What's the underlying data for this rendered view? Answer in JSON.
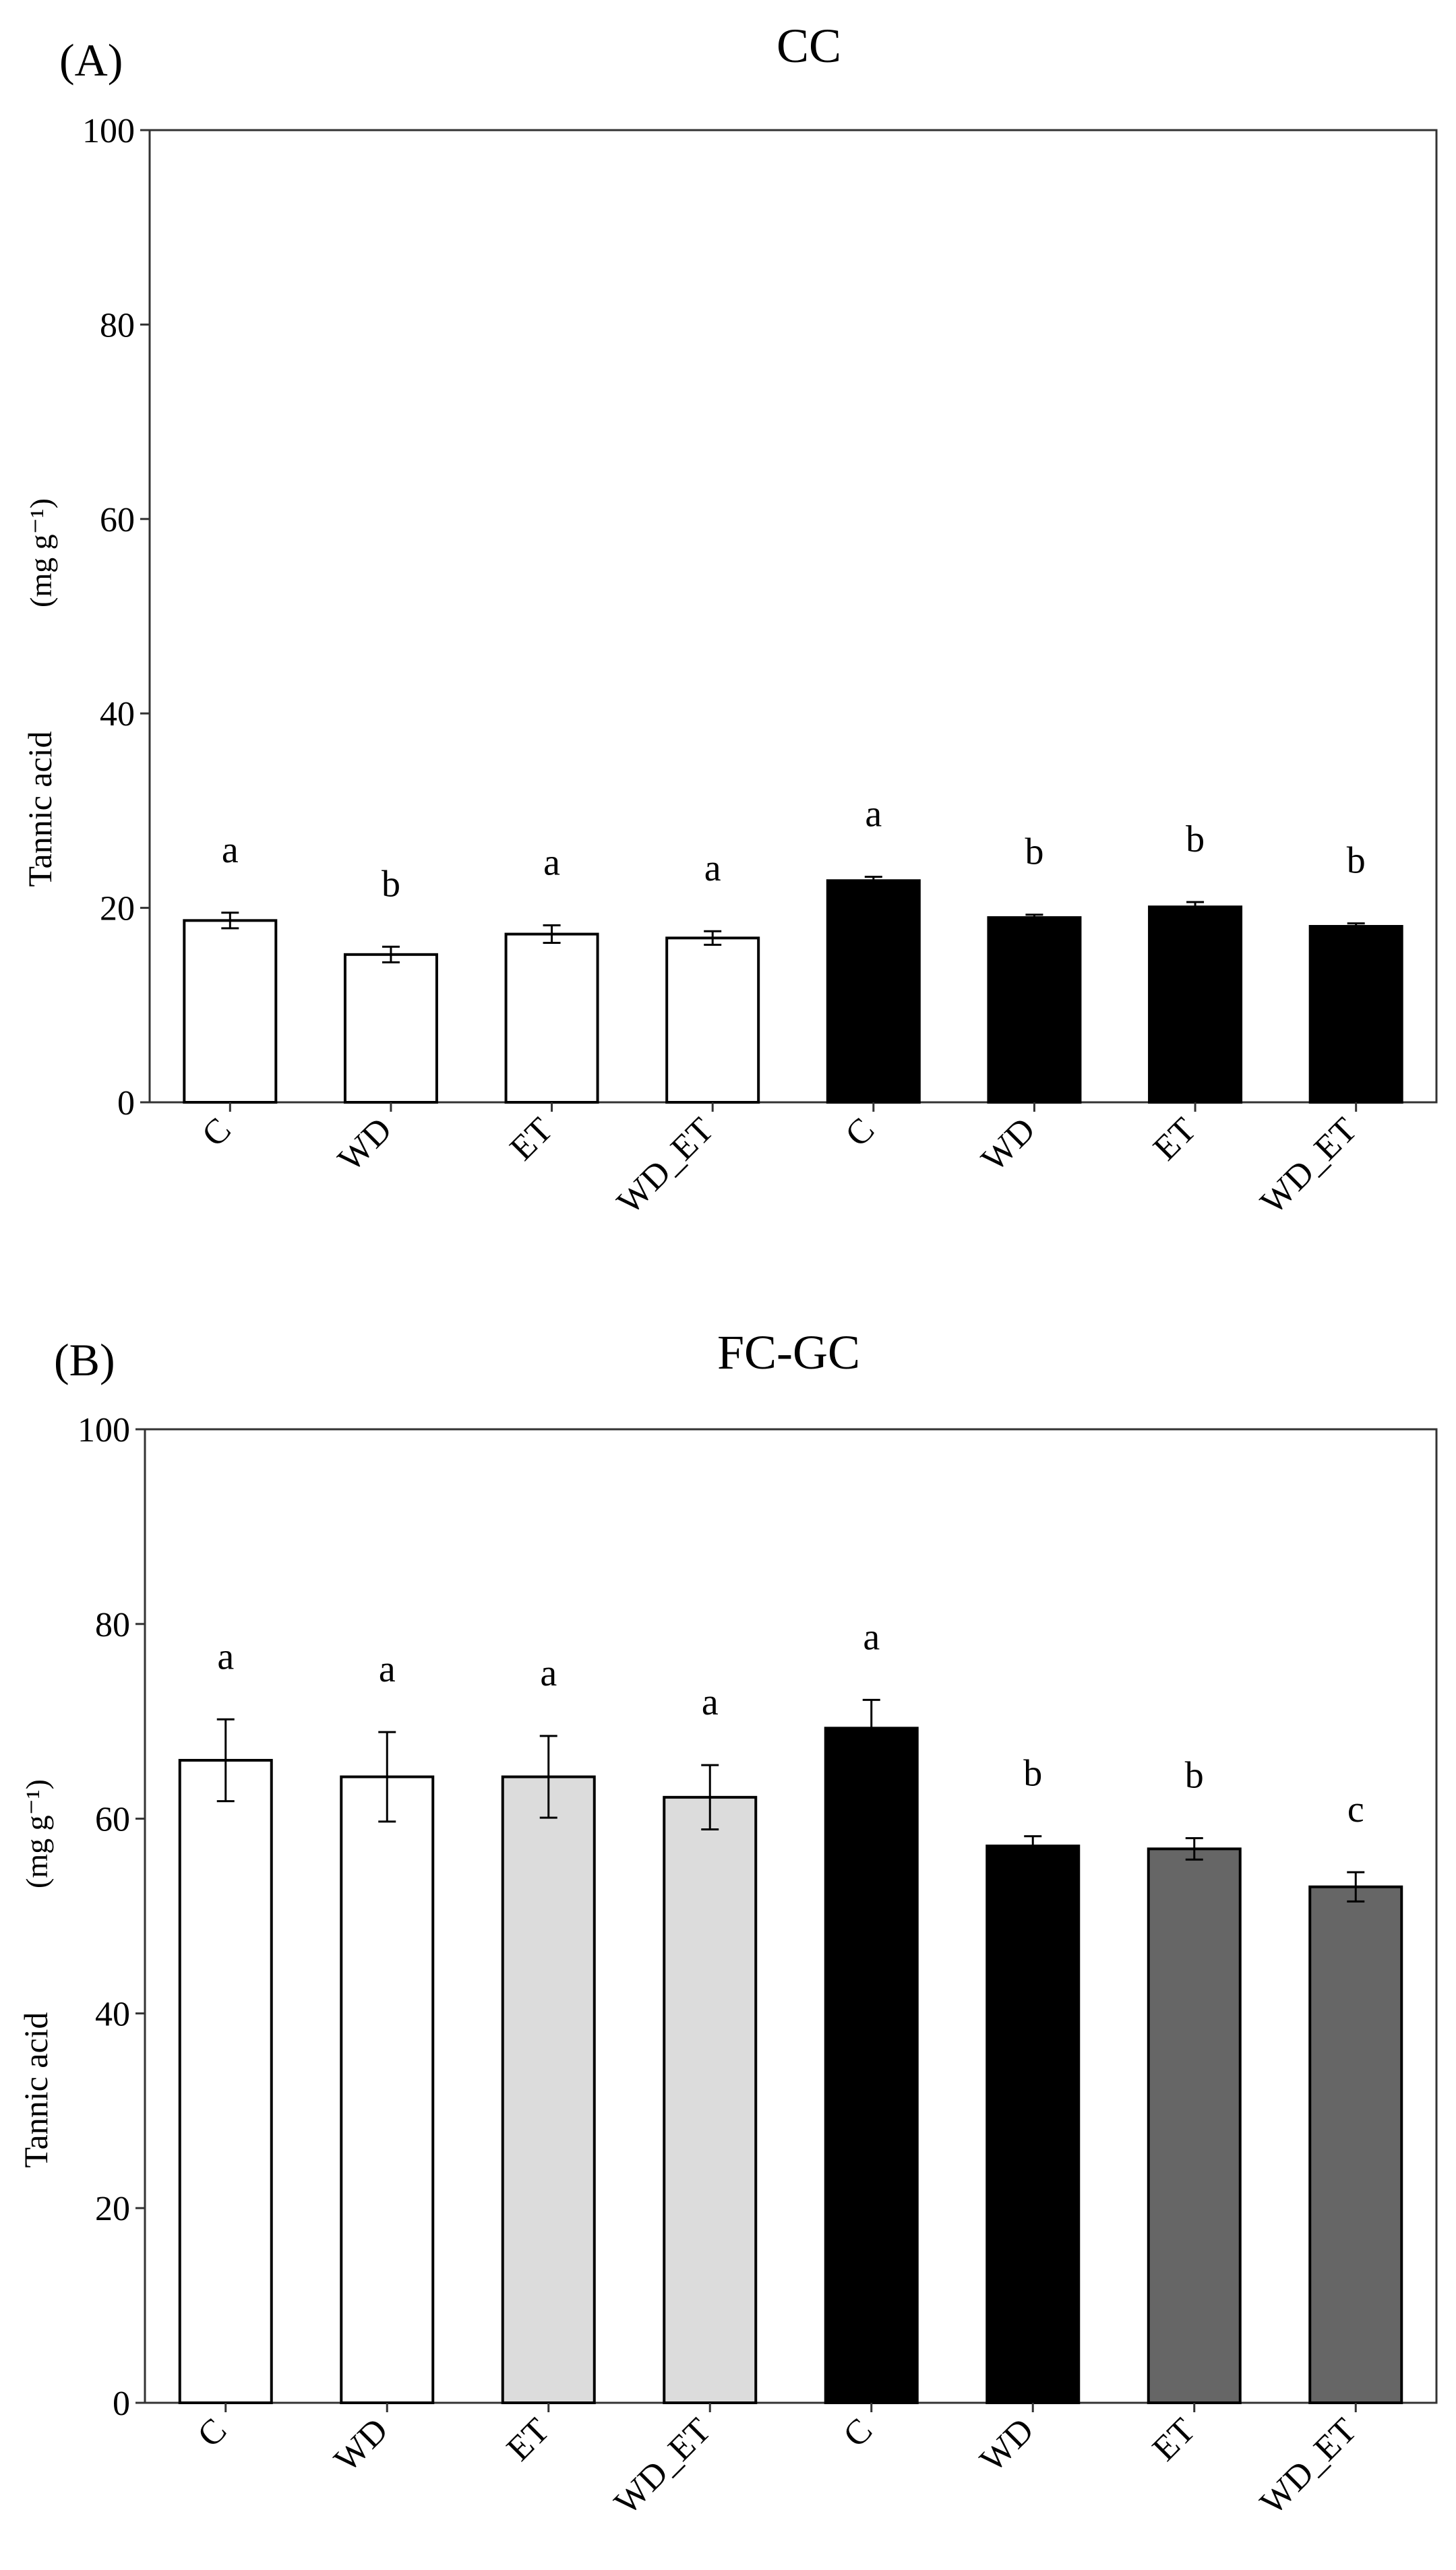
{
  "chart_data": [
    {
      "panel": "(A)",
      "type": "bar",
      "title": "CC",
      "ylabel": "Tannic acid",
      "yunit": "(mg g⁻¹)",
      "ylim": [
        0,
        100
      ],
      "yticks": [
        0,
        20,
        40,
        60,
        80,
        100
      ],
      "categories": [
        "C",
        "WD",
        "ET",
        "WD_ET",
        "C",
        "WD",
        "ET",
        "WD_ET"
      ],
      "values": [
        18.7,
        15.2,
        17.3,
        16.9,
        22.8,
        19.0,
        20.1,
        18.1
      ],
      "errors": [
        0.8,
        0.8,
        0.9,
        0.7,
        0.4,
        0.3,
        0.5,
        0.3
      ],
      "significance": [
        "a",
        "b",
        "a",
        "a",
        "a",
        "b",
        "b",
        "b"
      ],
      "colors": [
        "#ffffff",
        "#ffffff",
        "#ffffff",
        "#ffffff",
        "#000000",
        "#000000",
        "#000000",
        "#000000"
      ]
    },
    {
      "panel": "(B)",
      "type": "bar",
      "title": "FC-GC",
      "ylabel": "Tannic acid",
      "yunit": "(mg g⁻¹)",
      "ylim": [
        0,
        100
      ],
      "yticks": [
        0,
        20,
        40,
        60,
        80,
        100
      ],
      "categories": [
        "C",
        "WD",
        "ET",
        "WD_ET",
        "C",
        "WD",
        "ET",
        "WD_ET"
      ],
      "values": [
        66.0,
        64.3,
        64.3,
        62.2,
        69.3,
        57.2,
        56.9,
        53.0
      ],
      "errors": [
        4.2,
        4.6,
        4.2,
        3.3,
        2.9,
        1.0,
        1.1,
        1.5
      ],
      "significance": [
        "a",
        "a",
        "a",
        "a",
        "a",
        "b",
        "b",
        "c"
      ],
      "colors": [
        "#ffffff",
        "#ffffff",
        "#dcdcdc",
        "#dcdcdc",
        "#000000",
        "#000000",
        "#666666",
        "#666666"
      ]
    }
  ]
}
